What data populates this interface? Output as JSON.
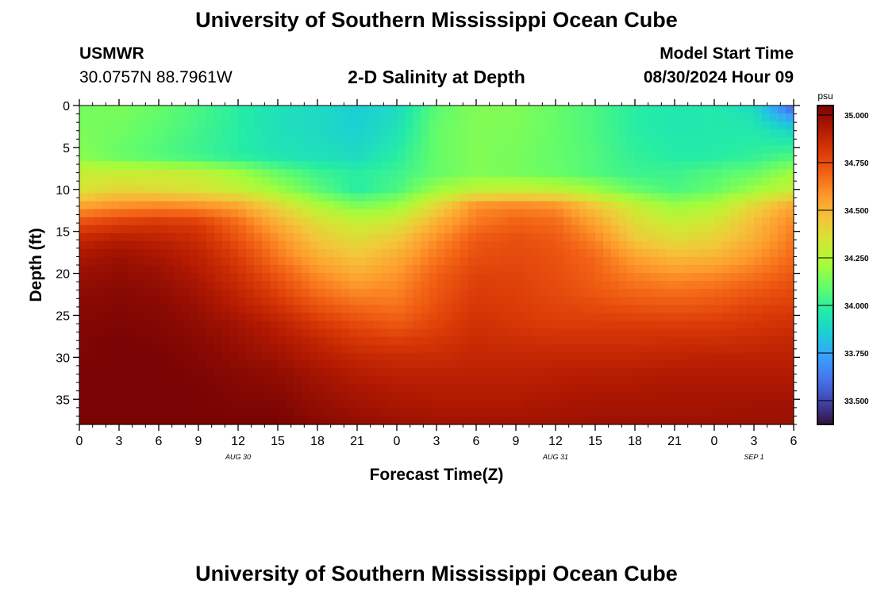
{
  "header": {
    "title": "University of Southern Mississippi Ocean Cube",
    "station": "USMWR",
    "coordinates": "30.0757N  88.7961W",
    "subtitle": "2-D Salinity at Depth",
    "model_start_label": "Model Start Time",
    "model_start_value": "08/30/2024 Hour 09"
  },
  "footer": {
    "title": "University of Southern Mississippi Ocean Cube"
  },
  "chart_data": {
    "type": "heatmap",
    "title": "2-D Salinity at Depth",
    "xlabel": "Forecast Time(Z)",
    "ylabel": "Depth (ft)",
    "x_ticks": [
      "0",
      "3",
      "6",
      "9",
      "12",
      "15",
      "18",
      "21",
      "0",
      "3",
      "6",
      "9",
      "12",
      "15",
      "18",
      "21",
      "0",
      "3",
      "6"
    ],
    "x_hours": [
      0,
      3,
      6,
      9,
      12,
      15,
      18,
      21,
      24,
      27,
      30,
      33,
      36,
      39,
      42,
      45,
      48,
      51,
      54
    ],
    "date_labels": [
      {
        "label": "AUG 30",
        "hour": 12
      },
      {
        "label": "AUG 31",
        "hour": 36
      },
      {
        "label": "SEP 1",
        "hour": 51
      }
    ],
    "xlim": [
      0,
      54
    ],
    "y_ticks": [
      0,
      5,
      10,
      15,
      20,
      25,
      30,
      35
    ],
    "ylim": [
      0,
      38
    ],
    "colorbar": {
      "unit": "psu",
      "min": 33.375,
      "max": 35.05,
      "ticks": [
        "33.500",
        "33.750",
        "34.000",
        "34.250",
        "34.500",
        "34.750",
        "35.000"
      ],
      "tick_values": [
        33.5,
        33.75,
        34.0,
        34.25,
        34.5,
        34.75,
        35.0
      ],
      "colors": [
        "#30123b",
        "#4145ab",
        "#4675ed",
        "#39a2fc",
        "#1bcfd4",
        "#24eca6",
        "#61fc6c",
        "#a4fc3b",
        "#d1e834",
        "#f3c63a",
        "#fe9b2d",
        "#f36315",
        "#d93806",
        "#b11901",
        "#7a0403"
      ]
    },
    "hours": [
      0,
      3,
      6,
      9,
      12,
      15,
      18,
      21,
      24,
      27,
      30,
      33,
      36,
      39,
      42,
      45,
      48,
      51,
      54
    ],
    "depths": [
      0,
      3,
      6,
      8,
      10,
      12,
      14,
      16,
      18,
      20,
      22,
      24,
      26,
      28,
      30,
      32,
      34,
      36,
      38
    ],
    "salinity": [
      [
        34.12,
        34.14,
        34.1,
        34.05,
        33.98,
        33.92,
        33.9,
        33.85,
        33.9,
        34.08,
        34.15,
        34.15,
        34.1,
        34.05,
        33.98,
        33.95,
        33.96,
        33.9,
        33.55
      ],
      [
        34.14,
        34.12,
        34.08,
        34.03,
        33.98,
        33.92,
        33.9,
        33.86,
        33.93,
        34.1,
        34.15,
        34.14,
        34.1,
        34.05,
        33.98,
        33.95,
        33.96,
        33.96,
        33.88
      ],
      [
        34.16,
        34.1,
        34.06,
        34.02,
        33.98,
        33.94,
        33.92,
        33.9,
        33.98,
        34.1,
        34.15,
        34.13,
        34.1,
        34.06,
        34.0,
        33.97,
        33.97,
        34.0,
        34.05
      ],
      [
        34.3,
        34.3,
        34.3,
        34.28,
        34.2,
        34.1,
        34.02,
        33.98,
        34.02,
        34.1,
        34.15,
        34.13,
        34.1,
        34.06,
        34.02,
        34.02,
        34.06,
        34.1,
        34.2
      ],
      [
        34.35,
        34.4,
        34.38,
        34.35,
        34.3,
        34.2,
        34.08,
        33.98,
        34.05,
        34.2,
        34.28,
        34.3,
        34.28,
        34.2,
        34.1,
        34.05,
        34.1,
        34.2,
        34.3
      ],
      [
        34.55,
        34.6,
        34.62,
        34.6,
        34.55,
        34.4,
        34.25,
        34.15,
        34.2,
        34.4,
        34.6,
        34.62,
        34.6,
        34.45,
        34.3,
        34.2,
        34.25,
        34.4,
        34.55
      ],
      [
        34.75,
        34.8,
        34.82,
        34.8,
        34.68,
        34.52,
        34.38,
        34.3,
        34.35,
        34.52,
        34.65,
        34.7,
        34.68,
        34.55,
        34.38,
        34.3,
        34.35,
        34.48,
        34.62
      ],
      [
        34.88,
        34.92,
        34.9,
        34.86,
        34.74,
        34.6,
        34.45,
        34.38,
        34.45,
        34.6,
        34.72,
        34.75,
        34.72,
        34.62,
        34.45,
        34.38,
        34.42,
        34.52,
        34.65
      ],
      [
        34.95,
        34.98,
        34.95,
        34.9,
        34.8,
        34.65,
        34.52,
        34.45,
        34.52,
        34.65,
        34.75,
        34.76,
        34.74,
        34.68,
        34.55,
        34.48,
        34.5,
        34.58,
        34.68
      ],
      [
        34.98,
        35.0,
        34.98,
        34.93,
        34.84,
        34.72,
        34.6,
        34.52,
        34.58,
        34.7,
        34.78,
        34.78,
        34.75,
        34.7,
        34.62,
        34.58,
        34.6,
        34.65,
        34.72
      ],
      [
        35.0,
        35.02,
        35.0,
        34.96,
        34.88,
        34.78,
        34.66,
        34.6,
        34.62,
        34.72,
        34.8,
        34.79,
        34.76,
        34.72,
        34.68,
        34.66,
        34.68,
        34.72,
        34.76
      ],
      [
        35.02,
        35.03,
        35.02,
        34.98,
        34.92,
        34.84,
        34.74,
        34.68,
        34.66,
        34.75,
        34.82,
        34.8,
        34.78,
        34.76,
        34.74,
        34.73,
        34.74,
        34.78,
        34.8
      ],
      [
        35.03,
        35.04,
        35.03,
        35.0,
        34.96,
        34.9,
        34.82,
        34.76,
        34.72,
        34.78,
        34.84,
        34.82,
        34.8,
        34.8,
        34.8,
        34.8,
        34.8,
        34.82,
        34.84
      ],
      [
        35.04,
        35.05,
        35.04,
        35.02,
        34.98,
        34.94,
        34.88,
        34.82,
        34.8,
        34.82,
        34.86,
        34.85,
        34.84,
        34.84,
        34.84,
        34.85,
        34.85,
        34.86,
        34.88
      ],
      [
        35.04,
        35.05,
        35.05,
        35.03,
        35.0,
        34.97,
        34.92,
        34.88,
        34.86,
        34.86,
        34.88,
        34.88,
        34.88,
        34.88,
        34.88,
        34.89,
        34.9,
        34.9,
        34.9
      ],
      [
        35.05,
        35.05,
        35.05,
        35.04,
        35.02,
        35.0,
        34.96,
        34.92,
        34.9,
        34.9,
        34.9,
        34.9,
        34.91,
        34.92,
        34.92,
        34.93,
        34.93,
        34.93,
        34.93
      ],
      [
        35.05,
        35.05,
        35.05,
        35.05,
        35.03,
        35.02,
        34.98,
        34.95,
        34.93,
        34.92,
        34.92,
        34.92,
        34.93,
        34.94,
        34.94,
        34.95,
        34.95,
        34.95,
        34.95
      ],
      [
        35.05,
        35.05,
        35.05,
        35.05,
        35.04,
        35.04,
        35.0,
        34.97,
        34.95,
        34.94,
        34.94,
        34.94,
        34.95,
        34.96,
        34.96,
        34.96,
        34.96,
        34.97,
        34.97
      ],
      [
        35.05,
        35.05,
        35.05,
        35.05,
        35.05,
        35.05,
        35.02,
        35.0,
        34.98,
        34.97,
        34.97,
        34.97,
        34.97,
        34.98,
        34.98,
        34.98,
        34.98,
        34.98,
        34.98
      ]
    ]
  }
}
